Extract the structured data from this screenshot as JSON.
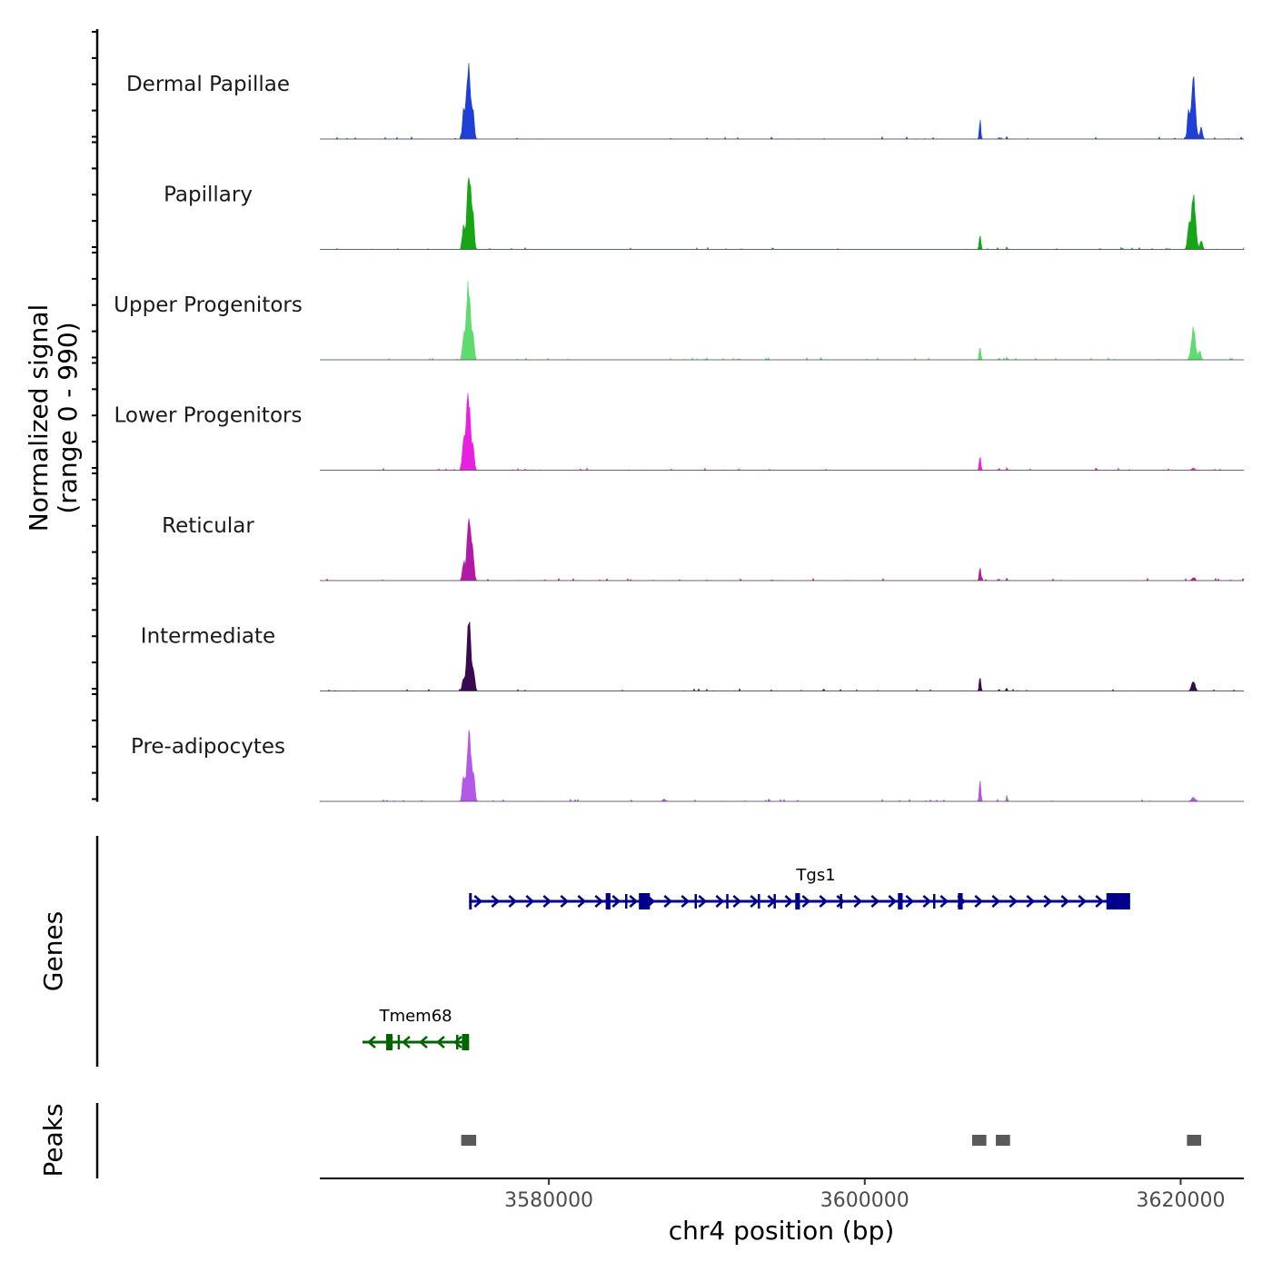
{
  "chart_data": {
    "type": "area",
    "ylabel_line1": "Normalized signal",
    "ylabel_line2": "(range 0 - 990)",
    "xlabel": "chr4 position (bp)",
    "x_range": [
      3565500,
      3624000
    ],
    "x_ticks": [
      3580000,
      3600000,
      3620000
    ],
    "x_tick_labels": [
      "3580000",
      "3600000",
      "3620000"
    ],
    "y_range": [
      0,
      990
    ],
    "tracks": [
      {
        "name": "Dermal Papillae",
        "color": "#1f3fd6",
        "peaks": [
          {
            "pos": 3574900,
            "height": 0.98,
            "width": 420
          },
          {
            "pos": 3574600,
            "height": 0.35,
            "width": 250
          },
          {
            "pos": 3575200,
            "height": 0.38,
            "width": 250
          },
          {
            "pos": 3607300,
            "height": 0.28,
            "width": 140
          },
          {
            "pos": 3608500,
            "height": 0.03,
            "width": 100
          },
          {
            "pos": 3609000,
            "height": 0.03,
            "width": 100
          },
          {
            "pos": 3620800,
            "height": 0.82,
            "width": 420
          },
          {
            "pos": 3620500,
            "height": 0.35,
            "width": 250
          },
          {
            "pos": 3621300,
            "height": 0.15,
            "width": 250
          }
        ]
      },
      {
        "name": "Papillary",
        "color": "#15a515",
        "peaks": [
          {
            "pos": 3574950,
            "height": 0.98,
            "width": 420
          },
          {
            "pos": 3574600,
            "height": 0.3,
            "width": 250
          },
          {
            "pos": 3575200,
            "height": 0.38,
            "width": 250
          },
          {
            "pos": 3607300,
            "height": 0.22,
            "width": 160
          },
          {
            "pos": 3609000,
            "height": 0.04,
            "width": 100
          },
          {
            "pos": 3620800,
            "height": 0.78,
            "width": 420
          },
          {
            "pos": 3620500,
            "height": 0.3,
            "width": 250
          },
          {
            "pos": 3621300,
            "height": 0.12,
            "width": 250
          }
        ]
      },
      {
        "name": "Upper Progenitors",
        "color": "#5fdc6f",
        "peaks": [
          {
            "pos": 3574900,
            "height": 1.0,
            "width": 420
          },
          {
            "pos": 3574600,
            "height": 0.3,
            "width": 250
          },
          {
            "pos": 3575200,
            "height": 0.32,
            "width": 250
          },
          {
            "pos": 3607300,
            "height": 0.2,
            "width": 160
          },
          {
            "pos": 3608500,
            "height": 0.03,
            "width": 100
          },
          {
            "pos": 3609000,
            "height": 0.04,
            "width": 100
          },
          {
            "pos": 3620800,
            "height": 0.42,
            "width": 400
          },
          {
            "pos": 3621200,
            "height": 0.12,
            "width": 250
          }
        ]
      },
      {
        "name": "Lower Progenitors",
        "color": "#e821e0",
        "peaks": [
          {
            "pos": 3574900,
            "height": 1.0,
            "width": 420
          },
          {
            "pos": 3574600,
            "height": 0.35,
            "width": 250
          },
          {
            "pos": 3575200,
            "height": 0.3,
            "width": 250
          },
          {
            "pos": 3607300,
            "height": 0.2,
            "width": 160
          },
          {
            "pos": 3608500,
            "height": 0.03,
            "width": 100
          },
          {
            "pos": 3609000,
            "height": 0.04,
            "width": 100
          },
          {
            "pos": 3620800,
            "height": 0.03,
            "width": 300
          }
        ]
      },
      {
        "name": "Reticular",
        "color": "#b01aa6",
        "peaks": [
          {
            "pos": 3574950,
            "height": 0.88,
            "width": 400
          },
          {
            "pos": 3574600,
            "height": 0.25,
            "width": 250
          },
          {
            "pos": 3575200,
            "height": 0.3,
            "width": 250
          },
          {
            "pos": 3607300,
            "height": 0.18,
            "width": 160
          },
          {
            "pos": 3608500,
            "height": 0.03,
            "width": 100
          },
          {
            "pos": 3609000,
            "height": 0.04,
            "width": 100
          },
          {
            "pos": 3620800,
            "height": 0.04,
            "width": 300
          }
        ]
      },
      {
        "name": "Intermediate",
        "color": "#3a0a4e",
        "peaks": [
          {
            "pos": 3574950,
            "height": 1.0,
            "width": 400
          },
          {
            "pos": 3574600,
            "height": 0.18,
            "width": 250
          },
          {
            "pos": 3575250,
            "height": 0.2,
            "width": 250
          },
          {
            "pos": 3607300,
            "height": 0.2,
            "width": 160
          },
          {
            "pos": 3608500,
            "height": 0.03,
            "width": 100
          },
          {
            "pos": 3609000,
            "height": 0.04,
            "width": 100
          },
          {
            "pos": 3620800,
            "height": 0.14,
            "width": 350
          }
        ]
      },
      {
        "name": "Pre-adipocytes",
        "color": "#b359e8",
        "peaks": [
          {
            "pos": 3574950,
            "height": 1.0,
            "width": 420
          },
          {
            "pos": 3574600,
            "height": 0.35,
            "width": 250
          },
          {
            "pos": 3575250,
            "height": 0.3,
            "width": 250
          },
          {
            "pos": 3587300,
            "height": 0.03,
            "width": 300
          },
          {
            "pos": 3607300,
            "height": 0.3,
            "width": 160
          },
          {
            "pos": 3609000,
            "height": 0.1,
            "width": 100
          },
          {
            "pos": 3620800,
            "height": 0.06,
            "width": 350
          }
        ]
      }
    ],
    "genes_label": "Genes",
    "genes": [
      {
        "name": "Tgs1",
        "start": 3574950,
        "end": 3616800,
        "strand": "+",
        "color": "#00008b",
        "exons": [
          [
            3574950,
            3575100
          ],
          [
            3583600,
            3583900
          ],
          [
            3585700,
            3586400
          ],
          [
            3595600,
            3595900
          ],
          [
            3602100,
            3602400
          ],
          [
            3605900,
            3606200
          ],
          [
            3615300,
            3616800
          ]
        ]
      },
      {
        "name": "Tmem68",
        "start": 3568200,
        "end": 3574950,
        "strand": "-",
        "color": "#006400",
        "exons": [
          [
            3569700,
            3570100
          ],
          [
            3574500,
            3574950
          ]
        ]
      }
    ],
    "peaks_label": "Peaks",
    "peak_regions": [
      [
        3574450,
        3575400
      ],
      [
        3606800,
        3607700
      ],
      [
        3608300,
        3609200
      ],
      [
        3620400,
        3621300
      ]
    ]
  }
}
